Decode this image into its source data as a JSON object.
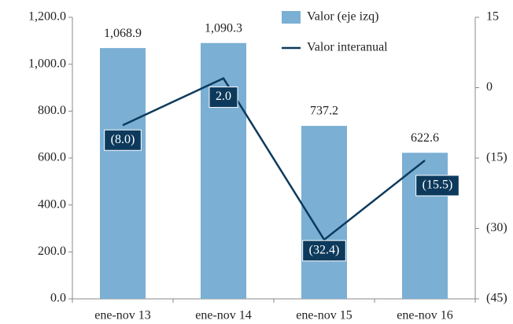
{
  "chart_data": {
    "type": "bar",
    "categories": [
      "ene-nov 13",
      "ene-nov 14",
      "ene-nov 15",
      "ene-nov 16"
    ],
    "series": [
      {
        "name": "Valor (eje izq)",
        "type": "bar",
        "color": "#7bafd4",
        "values": [
          1068.9,
          1090.3,
          737.2,
          622.6
        ],
        "value_labels": [
          "1,068.9",
          "1,090.3",
          "737.2",
          "622.6"
        ]
      },
      {
        "name": "Valor interanual",
        "type": "line",
        "axis": "y2",
        "color": "#0d3a5c",
        "values": [
          -8.0,
          2.0,
          -32.4,
          -15.5
        ],
        "value_labels": [
          "(8.0)",
          "2.0",
          "(32.4)",
          "(15.5)"
        ]
      }
    ],
    "ylim": [
      0,
      1200
    ],
    "yticks": [
      {
        "value": 0,
        "label": "0.0"
      },
      {
        "value": 200,
        "label": "200.0"
      },
      {
        "value": 400,
        "label": "400.0"
      },
      {
        "value": 600,
        "label": "600.0"
      },
      {
        "value": 800,
        "label": "800.0"
      },
      {
        "value": 1000,
        "label": "1,000.0"
      },
      {
        "value": 1200,
        "label": "1,200.0"
      }
    ],
    "y2lim": [
      -45,
      15
    ],
    "y2ticks": [
      {
        "value": -45,
        "label": "(45)"
      },
      {
        "value": -30,
        "label": "(30)"
      },
      {
        "value": -15,
        "label": "(15)"
      },
      0,
      15
    ],
    "legend": "top-right"
  }
}
